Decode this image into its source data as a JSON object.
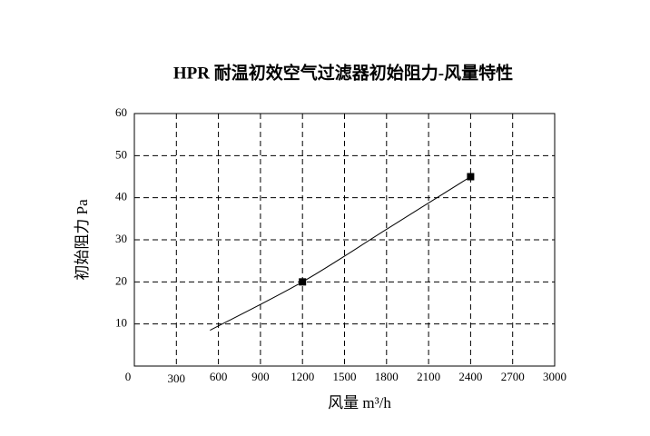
{
  "chart_data": {
    "type": "line",
    "title": "HPR 耐温初效空气过滤器初始阻力-风量特性",
    "x_label": "风量 m³/h",
    "y_label": "初始阻力 Pa",
    "x": [
      540,
      1200,
      1800,
      2400
    ],
    "values": [
      8.5,
      20,
      32.5,
      45
    ],
    "markers": [
      false,
      true,
      false,
      true
    ],
    "color": "#000000",
    "xlim": [
      0,
      3000
    ],
    "xticks": [
      0,
      300,
      600,
      900,
      1200,
      1500,
      1800,
      2100,
      2400,
      2700,
      3000
    ],
    "ylim": [
      0,
      60
    ],
    "yticks": [
      10,
      20,
      30,
      40,
      50,
      60
    ],
    "grid": true
  }
}
